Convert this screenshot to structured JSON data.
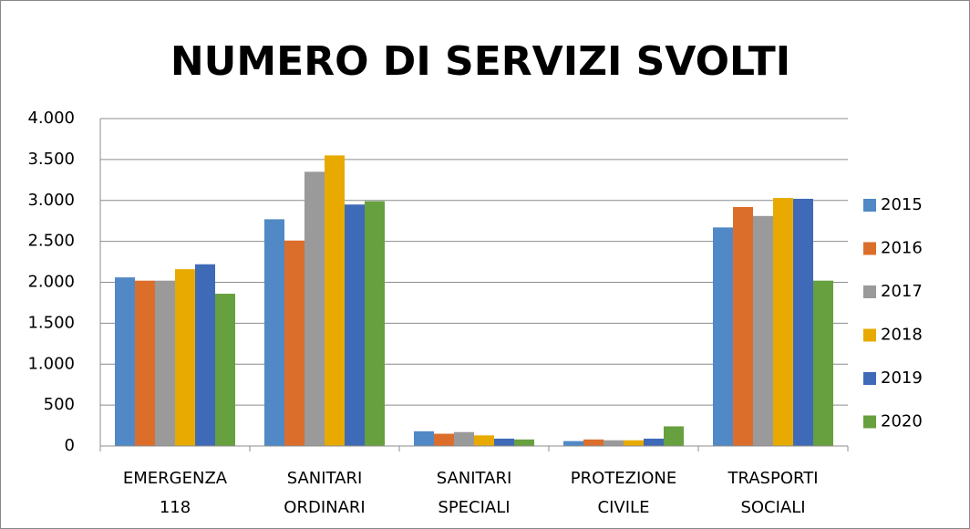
{
  "chart_data": {
    "type": "bar",
    "title": "NUMERO DI SERVIZI SVOLTI",
    "categories": [
      "EMERGENZA 118",
      "SANITARI ORDINARI",
      "SANITARI SPECIALI",
      "PROTEZIONE CIVILE",
      "TRASPORTI SOCIALI"
    ],
    "series": [
      {
        "name": "2015",
        "color": "#5089c6",
        "values": [
          2060,
          2770,
          180,
          60,
          2670
        ]
      },
      {
        "name": "2016",
        "color": "#dc6e2c",
        "values": [
          2020,
          2510,
          150,
          80,
          2920
        ]
      },
      {
        "name": "2017",
        "color": "#9a9a9a",
        "values": [
          2020,
          3350,
          170,
          70,
          2810
        ]
      },
      {
        "name": "2018",
        "color": "#e8aa00",
        "values": [
          2160,
          3550,
          130,
          70,
          3030
        ]
      },
      {
        "name": "2019",
        "color": "#3f6ab8",
        "values": [
          2220,
          2950,
          90,
          90,
          3020
        ]
      },
      {
        "name": "2020",
        "color": "#67a03e",
        "values": [
          1860,
          2990,
          80,
          240,
          2020
        ]
      }
    ],
    "ylim": [
      0,
      4000
    ],
    "yticks": [
      0,
      500,
      {
        "value": 1000,
        "label": "1.000"
      },
      {
        "value": 1500,
        "label": "1.500"
      },
      {
        "value": 2000,
        "label": "2.000"
      },
      {
        "value": 2500,
        "label": "2.500"
      },
      {
        "value": 3000,
        "label": "3.000"
      },
      {
        "value": 3500,
        "label": "3.500"
      },
      {
        "value": 4000,
        "label": "4.000"
      }
    ],
    "grid": true,
    "legend": "right"
  }
}
